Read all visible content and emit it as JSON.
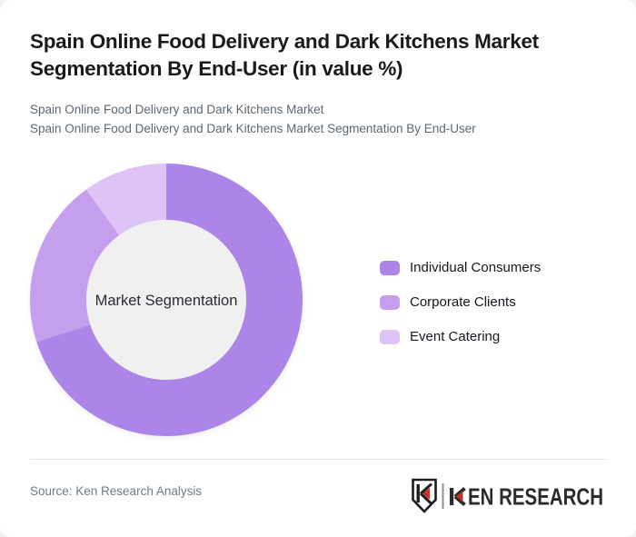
{
  "page": {
    "background_color": "#f1f1f2",
    "card_background_color": "#ffffff"
  },
  "header": {
    "title": "Spain Online Food Delivery and Dark Kitchens Market Segmentation By End-User (in value %)",
    "subtitle_line1": "Spain Online Food Delivery and Dark Kitchens Market",
    "subtitle_line2": "Spain Online Food Delivery and Dark Kitchens Market Segmentation By End-User"
  },
  "chart_data": {
    "type": "pie",
    "variant": "donut",
    "title": "Spain Online Food Delivery and Dark Kitchens Market Segmentation By End-User (in value %)",
    "center_label": "Market Segmentation",
    "categories": [
      "Individual Consumers",
      "Corporate Clients",
      "Event Catering"
    ],
    "values": [
      70,
      20,
      10
    ],
    "value_unit": "% of market value (estimated from arc angles; no numeric labels shown)",
    "colors": [
      "#ab85e8",
      "#c59fee",
      "#ddc3f6"
    ],
    "inner_circle_color": "#f0f0f0",
    "start_angle_deg": 0,
    "direction": "clockwise",
    "legend_position": "right",
    "grid": false
  },
  "legend": {
    "items": [
      {
        "label": "Individual Consumers",
        "color": "#ab85e8"
      },
      {
        "label": "Corporate Clients",
        "color": "#c59fee"
      },
      {
        "label": "Event Catering",
        "color": "#ddc3f6"
      }
    ]
  },
  "footer": {
    "source_text": "Source: Ken Research Analysis",
    "brand_name": "KEN RESEARCH",
    "brand_wordmark_rest": "EN RESEARCH",
    "brand_red": "#c8302c",
    "brand_dark": "#2b2b2b"
  }
}
